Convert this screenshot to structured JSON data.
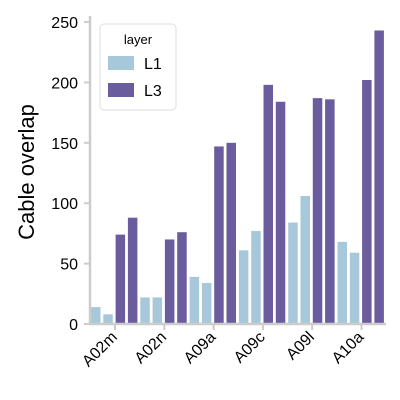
{
  "chart_data": {
    "type": "bar",
    "title": "",
    "xlabel": "",
    "ylabel": "Cable overlap",
    "ylim": [
      0,
      255
    ],
    "yticks": [
      0,
      50,
      100,
      150,
      200,
      250
    ],
    "grid": false,
    "legend_position": "top-left",
    "legend_title": "layer",
    "series_names": [
      "L1",
      "L3"
    ],
    "colors": {
      "L1": "#a6c8da",
      "L3": "#6a5c9d"
    },
    "groups": [
      {
        "label": "A02m",
        "L1": [
          14,
          8
        ],
        "L3": [
          74,
          88
        ]
      },
      {
        "label": "A02n",
        "L1": [
          22,
          22
        ],
        "L3": [
          70,
          76
        ]
      },
      {
        "label": "A09a",
        "L1": [
          39,
          34
        ],
        "L3": [
          147,
          150
        ]
      },
      {
        "label": "A09c",
        "L1": [
          61,
          77
        ],
        "L3": [
          198,
          184
        ]
      },
      {
        "label": "A09l",
        "L1": [
          84,
          106
        ],
        "L3": [
          187,
          186
        ]
      },
      {
        "label": "A10a",
        "L1": [
          68,
          59
        ],
        "L3": [
          202,
          243
        ]
      }
    ]
  }
}
